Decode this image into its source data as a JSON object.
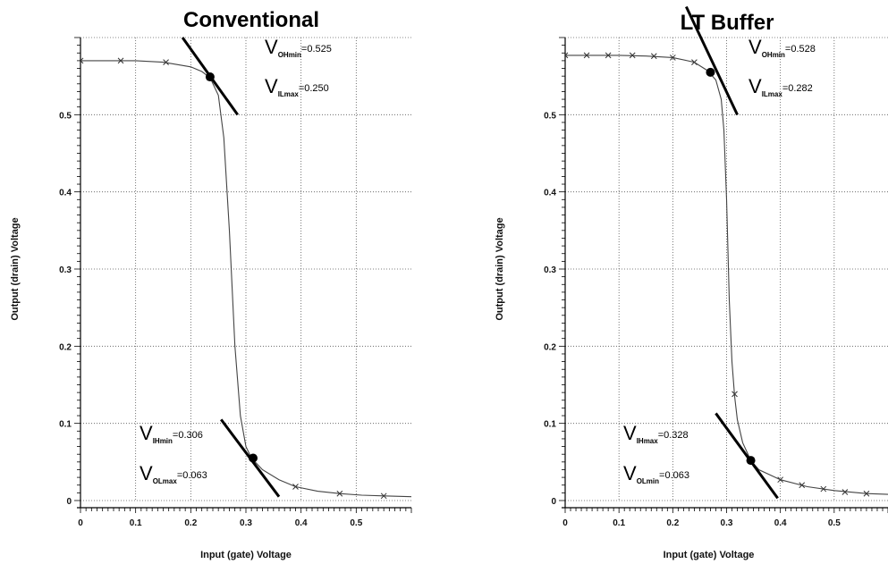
{
  "chart_data": [
    {
      "type": "line",
      "title": "Conventional",
      "xlabel": "Input (gate) Voltage",
      "ylabel": "Output (drain) Voltage",
      "xlim": [
        0,
        0.6
      ],
      "ylim": [
        0,
        0.6
      ],
      "xticks": [
        "0",
        "0.1",
        "0.2",
        "0.3",
        "0.4",
        "0.5"
      ],
      "yticks": [
        "0",
        "0.1",
        "0.2",
        "0.3",
        "0.4",
        "0.5"
      ],
      "grid": true,
      "series": [
        {
          "x": [
            0,
            0.05,
            0.1,
            0.15,
            0.2,
            0.22,
            0.235,
            0.25,
            0.26,
            0.27,
            0.28,
            0.29,
            0.3,
            0.31,
            0.33,
            0.36,
            0.39,
            0.43,
            0.47,
            0.51,
            0.55,
            0.6
          ],
          "y": [
            0.57,
            0.57,
            0.57,
            0.568,
            0.562,
            0.556,
            0.548,
            0.525,
            0.47,
            0.35,
            0.2,
            0.11,
            0.07,
            0.055,
            0.04,
            0.027,
            0.018,
            0.012,
            0.009,
            0.007,
            0.006,
            0.005
          ],
          "markers_x": [
            0,
            0.073,
            0.155,
            0.39,
            0.47,
            0.55
          ],
          "markers_y": [
            0.57,
            0.57,
            0.568,
            0.018,
            0.009,
            0.006
          ]
        }
      ],
      "tangents": [
        {
          "x": [
            0.185,
            0.285
          ],
          "y": [
            0.6,
            0.5
          ]
        },
        {
          "x": [
            0.255,
            0.36
          ],
          "y": [
            0.105,
            0.005
          ]
        }
      ],
      "points": [
        {
          "x": 0.235,
          "y": 0.549
        },
        {
          "x": 0.313,
          "y": 0.055
        }
      ],
      "annotations": [
        {
          "sym": "V",
          "sub": "OHmin",
          "value": "=0.525"
        },
        {
          "sym": "V",
          "sub": "ILmax",
          "value": "=0.250"
        },
        {
          "sym": "V",
          "sub": "IHmin",
          "value": "=0.306"
        },
        {
          "sym": "V",
          "sub": "OLmax",
          "value": "=0.063"
        }
      ]
    },
    {
      "type": "line",
      "title": "LT Buffer",
      "xlabel": "Input (gate) Voltage",
      "ylabel": "Output (drain) Voltage",
      "xlim": [
        0,
        0.6
      ],
      "ylim": [
        0,
        0.6
      ],
      "xticks": [
        "0",
        "0.1",
        "0.2",
        "0.3",
        "0.4",
        "0.5"
      ],
      "yticks": [
        "0",
        "0.1",
        "0.2",
        "0.3",
        "0.4",
        "0.5"
      ],
      "grid": true,
      "series": [
        {
          "x": [
            0,
            0.05,
            0.1,
            0.15,
            0.2,
            0.24,
            0.265,
            0.28,
            0.29,
            0.295,
            0.3,
            0.305,
            0.31,
            0.315,
            0.32,
            0.33,
            0.345,
            0.36,
            0.4,
            0.45,
            0.5,
            0.56,
            0.6
          ],
          "y": [
            0.577,
            0.577,
            0.577,
            0.576,
            0.574,
            0.568,
            0.557,
            0.545,
            0.52,
            0.48,
            0.39,
            0.26,
            0.18,
            0.135,
            0.105,
            0.075,
            0.052,
            0.04,
            0.027,
            0.018,
            0.013,
            0.009,
            0.008
          ],
          "markers_x": [
            0,
            0.04,
            0.08,
            0.125,
            0.165,
            0.2,
            0.24,
            0.315,
            0.4,
            0.44,
            0.48,
            0.52,
            0.56
          ],
          "markers_y": [
            0.577,
            0.577,
            0.577,
            0.577,
            0.576,
            0.574,
            0.568,
            0.138,
            0.027,
            0.02,
            0.015,
            0.011,
            0.009
          ]
        }
      ],
      "tangents": [
        {
          "x": [
            0.225,
            0.32
          ],
          "y": [
            0.64,
            0.5
          ]
        },
        {
          "x": [
            0.28,
            0.395
          ],
          "y": [
            0.113,
            0.003
          ]
        }
      ],
      "points": [
        {
          "x": 0.27,
          "y": 0.555
        },
        {
          "x": 0.345,
          "y": 0.052
        }
      ],
      "annotations": [
        {
          "sym": "V",
          "sub": "OHmin",
          "value": "=0.528"
        },
        {
          "sym": "V",
          "sub": "ILmax",
          "value": "=0.282"
        },
        {
          "sym": "V",
          "sub": "IHmax",
          "value": "=0.328"
        },
        {
          "sym": "V",
          "sub": "OLmin",
          "value": "=0.063"
        }
      ]
    }
  ]
}
